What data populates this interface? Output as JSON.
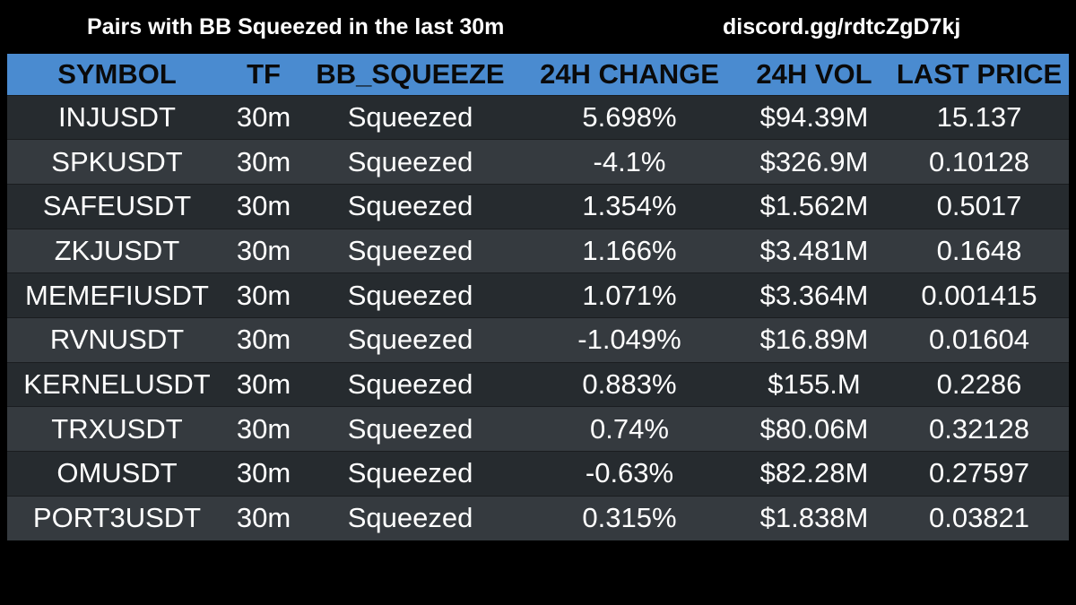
{
  "header": {
    "title": "Pairs with BB Squeezed in the last 30m",
    "link": "discord.gg/rdtcZgD7kj"
  },
  "table": {
    "columns": [
      "SYMBOL",
      "TF",
      "BB_SQUEEZE",
      "24H CHANGE",
      "24H VOL",
      "LAST PRICE"
    ],
    "rows": [
      {
        "symbol": "INJUSDT",
        "tf": "30m",
        "bb": "Squeezed",
        "change": "5.698%",
        "vol": "$94.39M",
        "price": "15.137"
      },
      {
        "symbol": "SPKUSDT",
        "tf": "30m",
        "bb": "Squeezed",
        "change": "-4.1%",
        "vol": "$326.9M",
        "price": "0.10128"
      },
      {
        "symbol": "SAFEUSDT",
        "tf": "30m",
        "bb": "Squeezed",
        "change": "1.354%",
        "vol": "$1.562M",
        "price": "0.5017"
      },
      {
        "symbol": "ZKJUSDT",
        "tf": "30m",
        "bb": "Squeezed",
        "change": "1.166%",
        "vol": "$3.481M",
        "price": "0.1648"
      },
      {
        "symbol": "MEMEFIUSDT",
        "tf": "30m",
        "bb": "Squeezed",
        "change": "1.071%",
        "vol": "$3.364M",
        "price": "0.001415"
      },
      {
        "symbol": "RVNUSDT",
        "tf": "30m",
        "bb": "Squeezed",
        "change": "-1.049%",
        "vol": "$16.89M",
        "price": "0.01604"
      },
      {
        "symbol": "KERNELUSDT",
        "tf": "30m",
        "bb": "Squeezed",
        "change": "0.883%",
        "vol": "$155.M",
        "price": "0.2286"
      },
      {
        "symbol": "TRXUSDT",
        "tf": "30m",
        "bb": "Squeezed",
        "change": "0.74%",
        "vol": "$80.06M",
        "price": "0.32128"
      },
      {
        "symbol": "OMUSDT",
        "tf": "30m",
        "bb": "Squeezed",
        "change": "-0.63%",
        "vol": "$82.28M",
        "price": "0.27597"
      },
      {
        "symbol": "PORT3USDT",
        "tf": "30m",
        "bb": "Squeezed",
        "change": "0.315%",
        "vol": "$1.838M",
        "price": "0.03821"
      }
    ]
  },
  "colors": {
    "header_bg": "#4a8bd0",
    "row_dark": "#262b2f",
    "row_light": "#353a3f",
    "page_bg": "#000000"
  }
}
